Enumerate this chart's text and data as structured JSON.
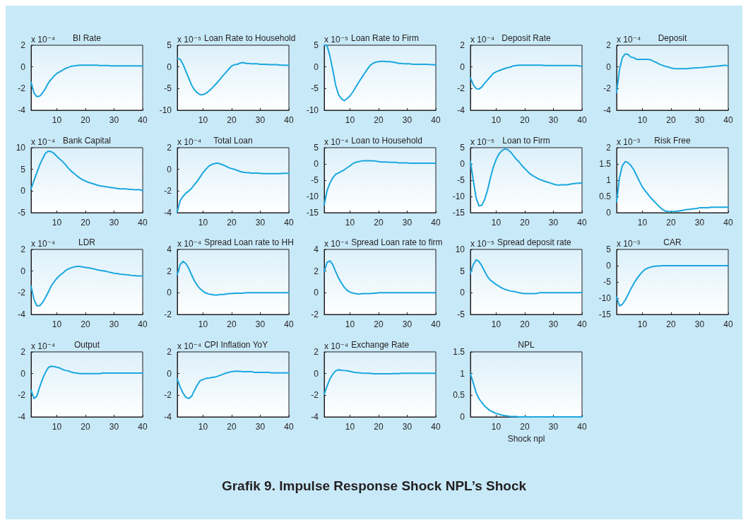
{
  "chart_data": [
    {
      "type": "line",
      "title": "BI Rate",
      "ylabel": "x 10⁻⁴",
      "color": "#1ba7e0",
      "x": [
        1,
        2,
        3,
        4,
        5,
        6,
        7,
        8,
        9,
        10,
        11,
        12,
        13,
        14,
        15,
        16,
        17,
        18,
        19,
        20,
        21,
        22,
        23,
        24,
        25,
        26,
        27,
        28,
        29,
        30,
        31,
        32,
        33,
        34,
        35,
        36,
        37,
        38,
        39,
        40
      ],
      "values": [
        -1.4,
        -2.4,
        -2.75,
        -2.7,
        -2.4,
        -2.0,
        -1.5,
        -1.15,
        -0.85,
        -0.6,
        -0.45,
        -0.3,
        -0.15,
        -0.05,
        0.05,
        0.1,
        0.13,
        0.15,
        0.15,
        0.15,
        0.15,
        0.15,
        0.15,
        0.15,
        0.13,
        0.13,
        0.13,
        0.13,
        0.1,
        0.1,
        0.1,
        0.1,
        0.1,
        0.1,
        0.1,
        0.1,
        0.1,
        0.1,
        0.1,
        0.08
      ],
      "xlim": [
        1,
        40
      ],
      "xticks": [
        10,
        20,
        30,
        40
      ],
      "ylim": [
        -4,
        2
      ],
      "yticks": [
        -4,
        -2,
        0,
        2
      ]
    },
    {
      "type": "line",
      "title": "Loan Rate to Household",
      "ylabel": "x 10⁻⁵",
      "color": "#1ba7e0",
      "x": [
        1,
        2,
        3,
        4,
        5,
        6,
        7,
        8,
        9,
        10,
        11,
        12,
        13,
        14,
        15,
        16,
        17,
        18,
        19,
        20,
        21,
        22,
        23,
        24,
        25,
        26,
        27,
        28,
        29,
        30,
        31,
        32,
        33,
        34,
        35,
        36,
        37,
        38,
        39,
        40
      ],
      "values": [
        2.0,
        1.8,
        0.6,
        -1.0,
        -2.6,
        -4.2,
        -5.3,
        -6.0,
        -6.4,
        -6.4,
        -6.1,
        -5.6,
        -5.0,
        -4.3,
        -3.6,
        -2.8,
        -2.0,
        -1.3,
        -0.5,
        0.2,
        0.5,
        0.6,
        0.9,
        1.0,
        0.8,
        0.8,
        0.7,
        0.7,
        0.7,
        0.6,
        0.6,
        0.6,
        0.5,
        0.5,
        0.5,
        0.5,
        0.4,
        0.4,
        0.4,
        0.3
      ],
      "xlim": [
        1,
        40
      ],
      "xticks": [
        10,
        20,
        30,
        40
      ],
      "ylim": [
        -10,
        5
      ],
      "yticks": [
        -10,
        -5,
        0,
        5
      ]
    },
    {
      "type": "line",
      "title": "Loan Rate to Firm",
      "ylabel": "x 10⁻⁵",
      "color": "#1ba7e0",
      "x": [
        1,
        2,
        3,
        4,
        5,
        6,
        7,
        8,
        9,
        10,
        11,
        12,
        13,
        14,
        15,
        16,
        17,
        18,
        19,
        20,
        21,
        22,
        23,
        24,
        25,
        26,
        27,
        28,
        29,
        30,
        31,
        32,
        33,
        34,
        35,
        36,
        37,
        38,
        39,
        40
      ],
      "values": [
        5.0,
        4.9,
        2.5,
        -0.7,
        -4.2,
        -6.4,
        -7.3,
        -7.8,
        -7.3,
        -6.7,
        -5.8,
        -4.7,
        -3.6,
        -2.6,
        -1.6,
        -0.6,
        0.3,
        0.8,
        1.1,
        1.2,
        1.3,
        1.3,
        1.2,
        1.2,
        1.1,
        1.0,
        0.8,
        0.8,
        0.7,
        0.7,
        0.7,
        0.6,
        0.6,
        0.6,
        0.6,
        0.6,
        0.6,
        0.5,
        0.5,
        0.4
      ],
      "xlim": [
        1,
        40
      ],
      "xticks": [
        10,
        20,
        30,
        40
      ],
      "ylim": [
        -10,
        5
      ],
      "yticks": [
        -10,
        -5,
        0,
        5
      ]
    },
    {
      "type": "line",
      "title": "Deposit Rate",
      "ylabel": "x 10⁻⁴",
      "color": "#1ba7e0",
      "x": [
        1,
        2,
        3,
        4,
        5,
        6,
        7,
        8,
        9,
        10,
        11,
        12,
        13,
        14,
        15,
        16,
        17,
        18,
        19,
        20,
        21,
        22,
        23,
        24,
        25,
        26,
        27,
        28,
        29,
        30,
        31,
        32,
        33,
        34,
        35,
        36,
        37,
        38,
        39,
        40
      ],
      "values": [
        -1.0,
        -1.65,
        -2.0,
        -2.05,
        -1.85,
        -1.5,
        -1.2,
        -0.9,
        -0.6,
        -0.45,
        -0.35,
        -0.25,
        -0.15,
        -0.07,
        -0.02,
        0.1,
        0.13,
        0.15,
        0.15,
        0.15,
        0.15,
        0.15,
        0.15,
        0.15,
        0.15,
        0.15,
        0.13,
        0.13,
        0.13,
        0.13,
        0.13,
        0.13,
        0.13,
        0.13,
        0.13,
        0.13,
        0.13,
        0.13,
        0.1,
        0.04
      ],
      "xlim": [
        1,
        40
      ],
      "xticks": [
        10,
        20,
        30,
        40
      ],
      "ylim": [
        -4,
        2
      ],
      "yticks": [
        -4,
        -2,
        0,
        2
      ]
    },
    {
      "type": "line",
      "title": "Deposit",
      "ylabel": "x 10⁻⁴",
      "color": "#1ba7e0",
      "x": [
        1,
        2,
        3,
        4,
        5,
        6,
        7,
        8,
        9,
        10,
        11,
        12,
        13,
        14,
        15,
        16,
        17,
        18,
        19,
        20,
        21,
        22,
        23,
        24,
        25,
        26,
        27,
        28,
        29,
        30,
        31,
        32,
        33,
        34,
        35,
        36,
        37,
        38,
        39,
        40
      ],
      "values": [
        -2.35,
        -0.25,
        0.85,
        1.2,
        1.15,
        0.9,
        0.85,
        0.7,
        0.7,
        0.7,
        0.7,
        0.7,
        0.65,
        0.5,
        0.4,
        0.25,
        0.15,
        0.05,
        0.0,
        -0.1,
        -0.15,
        -0.17,
        -0.17,
        -0.17,
        -0.17,
        -0.15,
        -0.12,
        -0.1,
        -0.08,
        -0.07,
        -0.05,
        -0.02,
        0.0,
        0.02,
        0.04,
        0.07,
        0.1,
        0.13,
        0.15,
        0.1
      ],
      "xlim": [
        1,
        40
      ],
      "xticks": [
        10,
        20,
        30,
        40
      ],
      "ylim": [
        -4,
        2
      ],
      "yticks": [
        -4,
        -2,
        0,
        2
      ]
    },
    {
      "type": "line",
      "title": "Bank Capital",
      "ylabel": "x 10⁻⁴",
      "color": "#1ba7e0",
      "x": [
        1,
        2,
        3,
        4,
        5,
        6,
        7,
        8,
        9,
        10,
        11,
        12,
        13,
        14,
        15,
        16,
        17,
        18,
        19,
        20,
        21,
        22,
        23,
        24,
        25,
        26,
        27,
        28,
        29,
        30,
        31,
        32,
        33,
        34,
        35,
        36,
        37,
        38,
        39,
        40
      ],
      "values": [
        0.5,
        2.4,
        4.2,
        6.0,
        7.4,
        8.7,
        9.2,
        9.1,
        8.7,
        8.0,
        7.4,
        6.8,
        6.1,
        5.3,
        4.6,
        4.1,
        3.5,
        3.0,
        2.6,
        2.3,
        2.0,
        1.8,
        1.6,
        1.4,
        1.2,
        1.1,
        1.0,
        0.9,
        0.8,
        0.7,
        0.6,
        0.5,
        0.5,
        0.5,
        0.4,
        0.4,
        0.3,
        0.3,
        0.3,
        0.1
      ],
      "xlim": [
        1,
        40
      ],
      "xticks": [
        10,
        20,
        30,
        40
      ],
      "ylim": [
        -5,
        10
      ],
      "yticks": [
        -5,
        0,
        5,
        10
      ]
    },
    {
      "type": "line",
      "title": "Total Loan",
      "ylabel": "x 10⁻⁴",
      "color": "#1ba7e0",
      "x": [
        1,
        2,
        3,
        4,
        5,
        6,
        7,
        8,
        9,
        10,
        11,
        12,
        13,
        14,
        15,
        16,
        17,
        18,
        19,
        20,
        21,
        22,
        23,
        24,
        25,
        26,
        27,
        28,
        29,
        30,
        31,
        32,
        33,
        34,
        35,
        36,
        37,
        38,
        39,
        40
      ],
      "values": [
        -3.9,
        -2.9,
        -2.5,
        -2.2,
        -2.0,
        -1.75,
        -1.4,
        -1.1,
        -0.7,
        -0.3,
        0.0,
        0.3,
        0.45,
        0.53,
        0.58,
        0.5,
        0.4,
        0.3,
        0.15,
        0.07,
        0.0,
        -0.1,
        -0.2,
        -0.27,
        -0.3,
        -0.32,
        -0.35,
        -0.35,
        -0.35,
        -0.37,
        -0.4,
        -0.4,
        -0.4,
        -0.4,
        -0.4,
        -0.4,
        -0.4,
        -0.37,
        -0.37,
        -0.37
      ],
      "xlim": [
        1,
        40
      ],
      "xticks": [
        10,
        20,
        30,
        40
      ],
      "ylim": [
        -4,
        2
      ],
      "yticks": [
        -4,
        -2,
        0,
        2
      ]
    },
    {
      "type": "line",
      "title": "Loan to Household",
      "ylabel": "x 10⁻⁴",
      "color": "#1ba7e0",
      "x": [
        1,
        2,
        3,
        4,
        5,
        6,
        7,
        8,
        9,
        10,
        11,
        12,
        13,
        14,
        15,
        16,
        17,
        18,
        19,
        20,
        21,
        22,
        23,
        24,
        25,
        26,
        27,
        28,
        29,
        30,
        31,
        32,
        33,
        34,
        35,
        36,
        37,
        38,
        39,
        40
      ],
      "values": [
        -12.6,
        -8.2,
        -5.9,
        -4.3,
        -3.2,
        -2.8,
        -2.3,
        -1.8,
        -1.2,
        -0.6,
        0.1,
        0.5,
        0.7,
        0.9,
        1.0,
        1.0,
        1.0,
        0.9,
        0.9,
        0.7,
        0.6,
        0.6,
        0.6,
        0.5,
        0.5,
        0.5,
        0.3,
        0.3,
        0.3,
        0.3,
        0.2,
        0.2,
        0.2,
        0.2,
        0.2,
        0.2,
        0.2,
        0.2,
        0.2,
        0.2
      ],
      "xlim": [
        1,
        40
      ],
      "xticks": [
        10,
        20,
        30,
        40
      ],
      "ylim": [
        -15,
        5
      ],
      "yticks": [
        -15,
        -10,
        -5,
        0,
        5
      ]
    },
    {
      "type": "line",
      "title": "Loan to Firm",
      "ylabel": "x 10⁻⁵",
      "color": "#1ba7e0",
      "x": [
        1,
        2,
        3,
        4,
        5,
        6,
        7,
        8,
        9,
        10,
        11,
        12,
        13,
        14,
        15,
        16,
        17,
        18,
        19,
        20,
        21,
        22,
        23,
        24,
        25,
        26,
        27,
        28,
        29,
        30,
        31,
        32,
        33,
        34,
        35,
        36,
        37,
        38,
        39,
        40
      ],
      "values": [
        0.8,
        -5.0,
        -10.5,
        -12.9,
        -12.7,
        -10.9,
        -8.0,
        -4.3,
        -1.0,
        1.4,
        3.1,
        4.1,
        4.6,
        4.4,
        3.7,
        2.6,
        1.5,
        0.6,
        -0.5,
        -1.4,
        -2.3,
        -3.2,
        -3.7,
        -4.2,
        -4.7,
        -5.0,
        -5.4,
        -5.6,
        -5.9,
        -6.2,
        -6.4,
        -6.5,
        -6.4,
        -6.4,
        -6.4,
        -6.2,
        -6.1,
        -6.0,
        -5.9,
        -5.8
      ],
      "xlim": [
        1,
        40
      ],
      "xticks": [
        10,
        20,
        30,
        40
      ],
      "ylim": [
        -15,
        5
      ],
      "yticks": [
        -15,
        -10,
        -5,
        0,
        5
      ]
    },
    {
      "type": "line",
      "title": "Risk Free",
      "ylabel": "x 10⁻³",
      "color": "#1ba7e0",
      "x": [
        1,
        2,
        3,
        4,
        5,
        6,
        7,
        8,
        9,
        10,
        11,
        12,
        13,
        14,
        15,
        16,
        17,
        18,
        19,
        20,
        21,
        22,
        23,
        24,
        25,
        26,
        27,
        28,
        29,
        30,
        31,
        32,
        33,
        34,
        35,
        36,
        37,
        38,
        39,
        40
      ],
      "values": [
        0.34,
        1.07,
        1.45,
        1.57,
        1.54,
        1.45,
        1.32,
        1.14,
        0.96,
        0.79,
        0.67,
        0.56,
        0.45,
        0.36,
        0.27,
        0.18,
        0.1,
        0.05,
        0.04,
        0.03,
        0.04,
        0.04,
        0.06,
        0.07,
        0.09,
        0.1,
        0.11,
        0.12,
        0.13,
        0.15,
        0.15,
        0.15,
        0.15,
        0.17,
        0.17,
        0.17,
        0.17,
        0.17,
        0.17,
        0.17
      ],
      "xlim": [
        1,
        40
      ],
      "xticks": [
        10,
        20,
        30,
        40
      ],
      "ylim": [
        0,
        2
      ],
      "yticks": [
        0,
        0.5,
        1,
        1.5,
        2
      ]
    },
    {
      "type": "line",
      "title": "LDR",
      "ylabel": "x 10⁻⁴",
      "color": "#1ba7e0",
      "x": [
        1,
        2,
        3,
        4,
        5,
        6,
        7,
        8,
        9,
        10,
        11,
        12,
        13,
        14,
        15,
        16,
        17,
        18,
        19,
        20,
        21,
        22,
        23,
        24,
        25,
        26,
        27,
        28,
        29,
        30,
        31,
        32,
        33,
        34,
        35,
        36,
        37,
        38,
        39,
        40
      ],
      "values": [
        -1.4,
        -2.6,
        -3.2,
        -3.2,
        -2.9,
        -2.45,
        -1.95,
        -1.4,
        -1.0,
        -0.67,
        -0.4,
        -0.2,
        0.03,
        0.2,
        0.3,
        0.38,
        0.43,
        0.43,
        0.38,
        0.34,
        0.3,
        0.25,
        0.2,
        0.12,
        0.07,
        0.03,
        -0.01,
        -0.08,
        -0.14,
        -0.2,
        -0.22,
        -0.28,
        -0.3,
        -0.33,
        -0.35,
        -0.4,
        -0.42,
        -0.44,
        -0.45,
        -0.45
      ],
      "xlim": [
        1,
        40
      ],
      "xticks": [
        10,
        20,
        30,
        40
      ],
      "ylim": [
        -4,
        2
      ],
      "yticks": [
        -4,
        -2,
        0,
        2
      ]
    },
    {
      "type": "line",
      "title": "Spread Loan rate to HH",
      "ylabel": "x 10⁻⁴",
      "color": "#1ba7e0",
      "x": [
        1,
        2,
        3,
        4,
        5,
        6,
        7,
        8,
        9,
        10,
        11,
        12,
        13,
        14,
        15,
        16,
        17,
        18,
        19,
        20,
        21,
        22,
        23,
        24,
        25,
        26,
        27,
        28,
        29,
        30,
        31,
        32,
        33,
        34,
        35,
        36,
        37,
        38,
        39,
        40
      ],
      "values": [
        1.65,
        2.6,
        2.9,
        2.7,
        2.25,
        1.65,
        1.1,
        0.67,
        0.36,
        0.14,
        -0.03,
        -0.12,
        -0.16,
        -0.2,
        -0.2,
        -0.16,
        -0.16,
        -0.12,
        -0.08,
        -0.08,
        -0.05,
        -0.04,
        -0.04,
        -0.04,
        0,
        0,
        0,
        0,
        0,
        0,
        0,
        0,
        0,
        0,
        0,
        0,
        0,
        0,
        0,
        0
      ],
      "xlim": [
        1,
        40
      ],
      "xticks": [
        10,
        20,
        30,
        40
      ],
      "ylim": [
        -2,
        4
      ],
      "yticks": [
        -2,
        0,
        2,
        4
      ]
    },
    {
      "type": "line",
      "title": "Spread Loan rate to firm",
      "ylabel": "x 10⁻⁴",
      "color": "#1ba7e0",
      "x": [
        1,
        2,
        3,
        4,
        5,
        6,
        7,
        8,
        9,
        10,
        11,
        12,
        13,
        14,
        15,
        16,
        17,
        18,
        19,
        20,
        21,
        22,
        23,
        24,
        25,
        26,
        27,
        28,
        29,
        30,
        31,
        32,
        33,
        34,
        35,
        36,
        37,
        38,
        39,
        40
      ],
      "values": [
        1.95,
        2.8,
        2.95,
        2.6,
        1.95,
        1.37,
        0.9,
        0.5,
        0.23,
        0.06,
        -0.03,
        -0.07,
        -0.12,
        -0.1,
        -0.08,
        -0.08,
        -0.08,
        -0.05,
        -0.05,
        0,
        0,
        0,
        0,
        0,
        0,
        0,
        0,
        0,
        0,
        0,
        0,
        0,
        0,
        0,
        0,
        0,
        0,
        0,
        0,
        0
      ],
      "xlim": [
        1,
        40
      ],
      "xticks": [
        10,
        20,
        30,
        40
      ],
      "ylim": [
        -2,
        4
      ],
      "yticks": [
        -2,
        0,
        2,
        4
      ]
    },
    {
      "type": "line",
      "title": "Spread deposit rate",
      "ylabel": "x 10⁻⁵",
      "color": "#1ba7e0",
      "x": [
        1,
        2,
        3,
        4,
        5,
        6,
        7,
        8,
        9,
        10,
        11,
        12,
        13,
        14,
        15,
        16,
        17,
        18,
        19,
        20,
        21,
        22,
        23,
        24,
        25,
        26,
        27,
        28,
        29,
        30,
        31,
        32,
        33,
        34,
        35,
        36,
        37,
        38,
        39,
        40
      ],
      "values": [
        4.5,
        6.5,
        7.6,
        7.2,
        6.2,
        4.9,
        3.7,
        2.9,
        2.4,
        1.9,
        1.5,
        1.1,
        0.8,
        0.6,
        0.4,
        0.3,
        0.2,
        0,
        -0.1,
        -0.2,
        -0.2,
        -0.2,
        -0.2,
        -0.2,
        0,
        0,
        0,
        0,
        0,
        0,
        0,
        0,
        0,
        0,
        0,
        0,
        0,
        0,
        0,
        0.1
      ],
      "xlim": [
        1,
        40
      ],
      "xticks": [
        10,
        20,
        30,
        40
      ],
      "ylim": [
        -5,
        10
      ],
      "yticks": [
        -5,
        0,
        5,
        10
      ]
    },
    {
      "type": "line",
      "title": "CAR",
      "ylabel": "x 10⁻³",
      "color": "#1ba7e0",
      "x": [
        1,
        2,
        3,
        4,
        5,
        6,
        7,
        8,
        9,
        10,
        11,
        12,
        13,
        14,
        15,
        16,
        17,
        18,
        19,
        20,
        21,
        22,
        23,
        24,
        25,
        26,
        27,
        28,
        29,
        30,
        31,
        32,
        33,
        34,
        35,
        36,
        37,
        38,
        39,
        40
      ],
      "values": [
        -9.6,
        -12.4,
        -11.9,
        -10.6,
        -8.9,
        -7.1,
        -5.5,
        -4.1,
        -2.9,
        -1.9,
        -1.1,
        -0.7,
        -0.4,
        -0.2,
        -0.1,
        -0.1,
        0,
        0,
        0,
        0,
        0,
        0,
        0,
        0,
        0,
        0,
        0,
        0,
        0,
        0,
        0,
        0,
        0,
        0,
        0,
        0,
        0,
        0,
        0,
        0
      ],
      "xlim": [
        1,
        40
      ],
      "xticks": [
        10,
        20,
        30,
        40
      ],
      "ylim": [
        -15,
        5
      ],
      "yticks": [
        -15,
        -10,
        -5,
        0,
        5
      ]
    },
    {
      "type": "line",
      "title": "Output",
      "ylabel": "x 10⁻⁴",
      "color": "#1ba7e0",
      "x": [
        1,
        2,
        3,
        4,
        5,
        6,
        7,
        8,
        9,
        10,
        11,
        12,
        13,
        14,
        15,
        16,
        17,
        18,
        19,
        20,
        21,
        22,
        23,
        24,
        25,
        26,
        27,
        28,
        29,
        30,
        31,
        32,
        33,
        34,
        35,
        36,
        37,
        38,
        39,
        40
      ],
      "values": [
        -1.55,
        -2.3,
        -2.1,
        -1.25,
        -0.5,
        0.1,
        0.55,
        0.68,
        0.65,
        0.58,
        0.52,
        0.38,
        0.28,
        0.25,
        0.14,
        0.08,
        0.04,
        0,
        0,
        0,
        0,
        0,
        0,
        0,
        0,
        0.04,
        0.04,
        0.04,
        0.04,
        0.04,
        0.04,
        0.04,
        0.04,
        0.04,
        0.04,
        0.04,
        0.04,
        0.04,
        0.04,
        0.04
      ],
      "xlim": [
        1,
        40
      ],
      "xticks": [
        10,
        20,
        30,
        40
      ],
      "ylim": [
        -4,
        2
      ],
      "yticks": [
        -4,
        -2,
        0,
        2
      ]
    },
    {
      "type": "line",
      "title": "CPI Inflation YoY",
      "ylabel": "x 10⁻⁴",
      "color": "#1ba7e0",
      "x": [
        1,
        2,
        3,
        4,
        5,
        6,
        7,
        8,
        9,
        10,
        11,
        12,
        13,
        14,
        15,
        16,
        17,
        18,
        19,
        20,
        21,
        22,
        23,
        24,
        25,
        26,
        27,
        28,
        29,
        30,
        31,
        32,
        33,
        34,
        35,
        36,
        37,
        38,
        39,
        40
      ],
      "values": [
        -0.5,
        -1.25,
        -1.8,
        -2.2,
        -2.3,
        -2.1,
        -1.55,
        -1.05,
        -0.65,
        -0.55,
        -0.45,
        -0.42,
        -0.36,
        -0.33,
        -0.26,
        -0.16,
        -0.06,
        0.04,
        0.11,
        0.18,
        0.21,
        0.23,
        0.21,
        0.18,
        0.18,
        0.18,
        0.18,
        0.11,
        0.11,
        0.11,
        0.11,
        0.11,
        0.11,
        0.06,
        0.06,
        0.06,
        0.06,
        0.06,
        0.06,
        0.06
      ],
      "xlim": [
        1,
        40
      ],
      "xticks": [
        10,
        20,
        30,
        40
      ],
      "ylim": [
        -4,
        2
      ],
      "yticks": [
        -4,
        -2,
        0,
        2
      ]
    },
    {
      "type": "line",
      "title": "Exchange Rate",
      "ylabel": "x 10⁻⁴",
      "color": "#1ba7e0",
      "x": [
        1,
        2,
        3,
        4,
        5,
        6,
        7,
        8,
        9,
        10,
        11,
        12,
        13,
        14,
        15,
        16,
        17,
        18,
        19,
        20,
        21,
        22,
        23,
        24,
        25,
        26,
        27,
        28,
        29,
        30,
        31,
        32,
        33,
        34,
        35,
        36,
        37,
        38,
        39,
        40
      ],
      "values": [
        -1.9,
        -1.15,
        -0.5,
        -0.05,
        0.25,
        0.35,
        0.3,
        0.28,
        0.25,
        0.2,
        0.14,
        0.09,
        0.08,
        0.04,
        0.03,
        0.03,
        0.03,
        -0.02,
        -0.02,
        -0.02,
        -0.02,
        -0.02,
        -0.02,
        -0.02,
        -0.01,
        -0.01,
        -0.01,
        0.03,
        0.03,
        0.03,
        0.03,
        0.03,
        0.03,
        0.03,
        0.03,
        0.03,
        0.03,
        0.03,
        0.03,
        0.03
      ],
      "xlim": [
        1,
        40
      ],
      "xticks": [
        10,
        20,
        30,
        40
      ],
      "ylim": [
        -4,
        2
      ],
      "yticks": [
        -4,
        -2,
        0,
        2
      ]
    },
    {
      "type": "line",
      "title": "NPL",
      "xlabel": "Shock npl",
      "color": "#1ba7e0",
      "x": [
        1,
        2,
        3,
        4,
        5,
        6,
        7,
        8,
        9,
        10,
        11,
        12,
        13,
        14,
        15,
        16,
        17,
        18,
        19,
        20,
        21,
        22,
        23,
        24,
        25,
        26,
        27,
        28,
        29,
        30,
        31,
        32,
        33,
        34,
        35,
        36,
        37,
        38,
        39,
        40
      ],
      "values": [
        1.0,
        0.78,
        0.56,
        0.42,
        0.33,
        0.25,
        0.19,
        0.14,
        0.11,
        0.08,
        0.06,
        0.04,
        0.03,
        0.02,
        0.01,
        0.01,
        0.01,
        0,
        0,
        0,
        0,
        0,
        0,
        0,
        0,
        0,
        0,
        0,
        0,
        0,
        0,
        0,
        0,
        0,
        0,
        0,
        0,
        0,
        0,
        0
      ],
      "xlim": [
        1,
        40
      ],
      "xticks": [
        10,
        20,
        30,
        40
      ],
      "ylim": [
        0,
        1.5
      ],
      "yticks": [
        0,
        0.5,
        1,
        1.5
      ],
      "annotations": [
        "Grafik 9. Impulse Response Shock NPL’s Shock"
      ]
    }
  ]
}
